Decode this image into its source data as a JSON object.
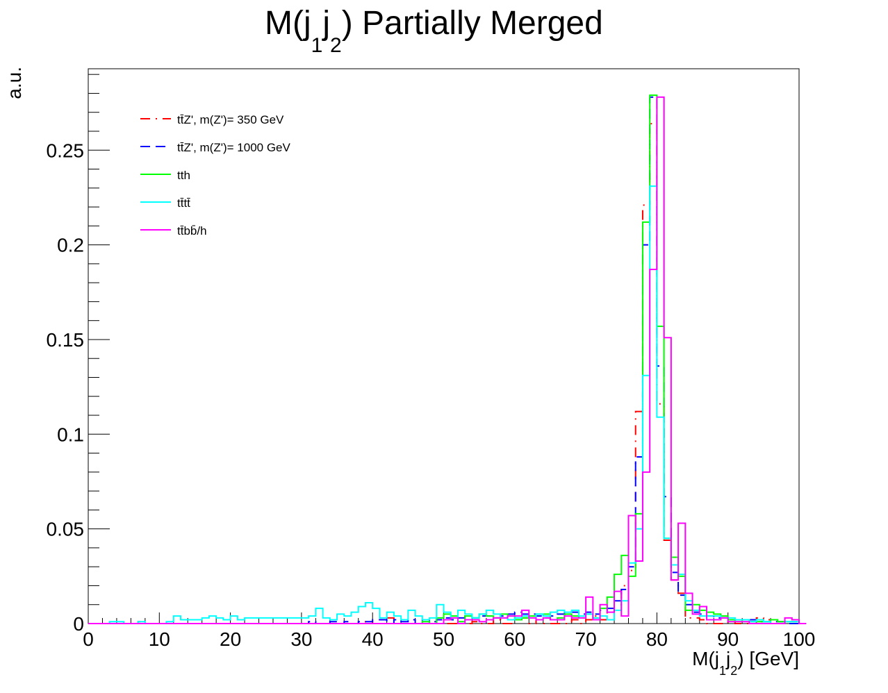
{
  "chart_data": {
    "type": "step-histogram",
    "title": {
      "main": "M(j",
      "sub1": "1",
      "mid": "j",
      "sub2": "2",
      "rest": ") Partially Merged"
    },
    "xlabel": {
      "main": "M(j",
      "sub1": "1",
      "mid": "j",
      "sub2": "2",
      "rest": ") [GeV]"
    },
    "ylabel": "a.u.",
    "xlim": [
      0,
      100
    ],
    "ylim": [
      0,
      0.293
    ],
    "x_ticks": [
      0,
      10,
      20,
      30,
      40,
      50,
      60,
      70,
      80,
      90,
      100
    ],
    "y_ticks": [
      0,
      0.05,
      0.1,
      0.15,
      0.2,
      0.25
    ],
    "legend_position": "top-left",
    "bin_width": 1,
    "series": [
      {
        "name": "tt̄Z', m(Z')= 350 GeV",
        "color": "#ff0000",
        "dash": "dashdot",
        "values": [
          0,
          0,
          0,
          0,
          0,
          0,
          0,
          0.001,
          0,
          0,
          0,
          0,
          0,
          0,
          0,
          0,
          0,
          0,
          0,
          0,
          0,
          0,
          0,
          0,
          0,
          0,
          0,
          0,
          0,
          0,
          0,
          0,
          0,
          0,
          0,
          0,
          0,
          0,
          0,
          0.001,
          0,
          0,
          0.003,
          0,
          0,
          0,
          0,
          0,
          0,
          0,
          0,
          0,
          0,
          0,
          0.001,
          0,
          0,
          0.002,
          0,
          0,
          0.002,
          0.003,
          0,
          0.002,
          0,
          0,
          0,
          0,
          0.002,
          0,
          0.002,
          0.004,
          0.002,
          0.006,
          0.01,
          0.02,
          0.028,
          0.112,
          0.221,
          0.264,
          0.116,
          0.044,
          0.023,
          0.016,
          0.003,
          0.003,
          0.002,
          0,
          0,
          0,
          0.001,
          0,
          0,
          0,
          0.003,
          0.002,
          0
        ]
      },
      {
        "name": "tt̄Z', m(Z')= 1000 GeV",
        "color": "#0000ff",
        "dash": "dash",
        "values": [
          0,
          0,
          0,
          0,
          0,
          0,
          0,
          0,
          0,
          0,
          0,
          0,
          0,
          0,
          0,
          0,
          0,
          0,
          0,
          0,
          0,
          0,
          0,
          0,
          0,
          0,
          0,
          0,
          0,
          0,
          0,
          0.001,
          0,
          0,
          0.001,
          0,
          0.001,
          0,
          0.001,
          0.001,
          0.002,
          0.002,
          0,
          0.002,
          0.001,
          0.002,
          0,
          0.002,
          0.001,
          0.002,
          0.003,
          0.002,
          0.003,
          0.004,
          0.003,
          0.004,
          0.004,
          0.003,
          0.004,
          0.005,
          0.006,
          0.005,
          0.005,
          0.004,
          0.003,
          0.004,
          0.005,
          0.006,
          0.006,
          0.005,
          0.006,
          0.005,
          0.007,
          0.008,
          0.012,
          0.018,
          0.03,
          0.088,
          0.2,
          0.278,
          0.136,
          0.067,
          0.027,
          0.015,
          0.01,
          0.006,
          0.005,
          0.004,
          0.003,
          0.003,
          0.002,
          0.002,
          0.002,
          0.002,
          0.001,
          0.001,
          0.001,
          0.001,
          0,
          0,
          0
        ]
      },
      {
        "name": "tth",
        "color": "#00ff00",
        "dash": "solid",
        "values": [
          0,
          0,
          0,
          0,
          0,
          0,
          0,
          0,
          0,
          0,
          0,
          0,
          0,
          0,
          0,
          0,
          0,
          0,
          0,
          0,
          0,
          0,
          0,
          0,
          0,
          0,
          0,
          0,
          0,
          0,
          0,
          0,
          0,
          0,
          0,
          0,
          0,
          0,
          0,
          0,
          0,
          0,
          0,
          0,
          0,
          0,
          0,
          0.001,
          0,
          0.003,
          0.005,
          0.004,
          0.001,
          0.004,
          0.003,
          0.005,
          0.004,
          0.003,
          0.005,
          0.004,
          0.002,
          0.003,
          0.004,
          0.005,
          0.005,
          0.002,
          0.003,
          0.005,
          0.004,
          0.003,
          0.005,
          0.003,
          0.008,
          0.014,
          0.026,
          0.036,
          0.025,
          0.058,
          0.212,
          0.279,
          0.157,
          0.045,
          0.035,
          0.025,
          0.007,
          0.01,
          0.007,
          0.006,
          0.005,
          0.004,
          0.002,
          0.001,
          0.002,
          0.001,
          0.001,
          0.001,
          0.002,
          0.001,
          0.001,
          0.001,
          0
        ]
      },
      {
        "name": "tt̄tt̄",
        "color": "#00ffff",
        "dash": "solid",
        "values": [
          0,
          0,
          0,
          0.001,
          0.001,
          0,
          0,
          0.001,
          0,
          0,
          0,
          0.001,
          0.004,
          0.002,
          0.002,
          0.002,
          0.003,
          0.004,
          0.003,
          0.002,
          0.004,
          0.002,
          0.003,
          0.003,
          0.003,
          0.003,
          0.003,
          0.003,
          0.003,
          0.003,
          0.003,
          0.004,
          0.008,
          0.003,
          0.002,
          0.005,
          0.004,
          0.006,
          0.009,
          0.011,
          0.008,
          0.003,
          0.006,
          0.004,
          0.002,
          0.007,
          0.004,
          0.002,
          0.003,
          0.01,
          0.006,
          0.003,
          0.007,
          0.005,
          0.003,
          0.005,
          0.007,
          0.005,
          0.003,
          0.002,
          0.003,
          0.004,
          0.003,
          0.005,
          0.004,
          0.006,
          0.007,
          0.006,
          0.007,
          0.004,
          0.005,
          0.003,
          0.004,
          0.002,
          0.007,
          0.012,
          0.032,
          0.05,
          0.131,
          0.231,
          0.109,
          0.045,
          0.031,
          0.026,
          0.012,
          0.007,
          0.004,
          0.004,
          0.004,
          0.003,
          0.003,
          0.002,
          0.002,
          0.001,
          0.002,
          0.001,
          0,
          0,
          0.001,
          0.001,
          0
        ]
      },
      {
        "name": "tt̄bb̄/h",
        "color": "#ff00ff",
        "dash": "solid",
        "values": [
          0,
          0,
          0,
          0,
          0,
          0,
          0,
          0,
          0,
          0,
          0,
          0,
          0,
          0,
          0,
          0,
          0,
          0,
          0,
          0,
          0,
          0,
          0,
          0,
          0,
          0,
          0,
          0,
          0,
          0,
          0,
          0,
          0,
          0,
          0,
          0,
          0,
          0,
          0,
          0,
          0,
          0,
          0,
          0,
          0,
          0,
          0,
          0,
          0,
          0,
          0.002,
          0.003,
          0,
          0.002,
          0.002,
          0.001,
          0.002,
          0.003,
          0.003,
          0.004,
          0.004,
          0.007,
          0.003,
          0.002,
          0.003,
          0.002,
          0.002,
          0.004,
          0.003,
          0.003,
          0.014,
          0.002,
          0.01,
          0.006,
          0.017,
          0.004,
          0.057,
          0.033,
          0.08,
          0.187,
          0.278,
          0.151,
          0.023,
          0.053,
          0.016,
          0.005,
          0.009,
          0.002,
          0.002,
          0.003,
          0.001,
          0.001,
          0.001,
          0,
          0,
          0,
          0,
          0,
          0.003,
          0.002,
          0
        ]
      }
    ]
  }
}
